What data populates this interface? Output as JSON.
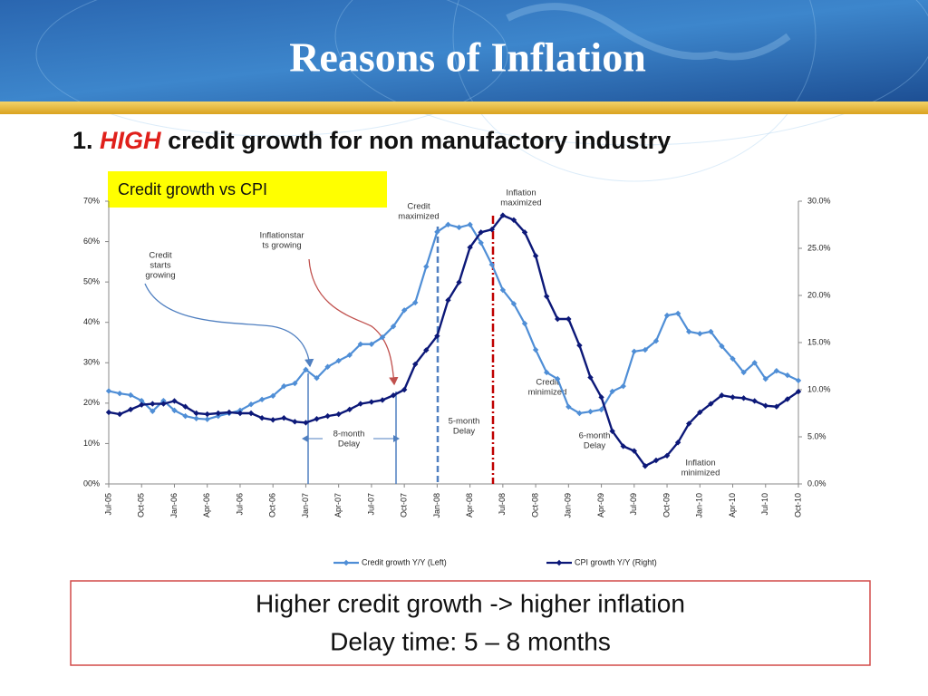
{
  "header": {
    "title": "Reasons of Inflation"
  },
  "subtitle": {
    "number": "1.",
    "highlight": "HIGH",
    "rest": "credit growth for non manufactory industry"
  },
  "chart_data": {
    "type": "line",
    "title": "Credit growth vs CPI",
    "categories": [
      "Jul-05",
      null,
      null,
      "Oct-05",
      null,
      null,
      "Jan-06",
      null,
      null,
      "Apr-06",
      null,
      null,
      "Jul-06",
      null,
      null,
      "Oct-06",
      null,
      null,
      "Jan-07",
      null,
      null,
      "Apr-07",
      null,
      null,
      "Jul-07",
      null,
      null,
      "Oct-07",
      null,
      null,
      "Jan-08",
      null,
      null,
      "Apr-08",
      null,
      null,
      "Jul-08",
      null,
      null,
      "Oct-08",
      null,
      null,
      "Jan-09",
      null,
      null,
      "Apr-09",
      null,
      null,
      "Jul-09",
      null,
      null,
      "Oct-09",
      null,
      null,
      "Jan-10",
      null,
      null,
      "Apr-10",
      null,
      null,
      "Jul-10",
      null,
      null,
      "Oct-10"
    ],
    "series": [
      {
        "name": "Credit growth Y/Y (Left)",
        "color": "#4f8ed6",
        "axis": "y",
        "values": [
          23,
          22.4,
          22,
          20.6,
          18,
          20.6,
          18.2,
          16.8,
          16.2,
          16,
          16.8,
          17.5,
          18.2,
          19.7,
          20.9,
          21.8,
          24.2,
          24.9,
          28.3,
          26.2,
          29,
          30.5,
          31.9,
          34.6,
          34.6,
          36.3,
          39,
          43,
          44.9,
          53.8,
          62.4,
          64.2,
          63.5,
          64.2,
          59.7,
          54.3,
          48,
          44.6,
          39.7,
          33.2,
          27.6,
          26,
          19.1,
          17.5,
          17.9,
          18.4,
          22.9,
          24.2,
          32.8,
          33.2,
          35.4,
          41.7,
          42.2,
          37.7,
          37.2,
          37.7,
          34.1,
          31,
          27.6,
          30,
          26,
          28,
          26.9,
          25.6
        ]
      },
      {
        "name": "CPI growth Y/Y (Right)",
        "color": "#0c1878",
        "axis": "y2",
        "values": [
          7.6,
          7.4,
          7.9,
          8.4,
          8.5,
          8.5,
          8.8,
          8.2,
          7.5,
          7.4,
          7.5,
          7.6,
          7.5,
          7.5,
          7.0,
          6.8,
          7.0,
          6.6,
          6.5,
          6.9,
          7.2,
          7.4,
          7.9,
          8.5,
          8.7,
          8.9,
          9.4,
          10,
          12.7,
          14.2,
          15.7,
          19.5,
          21.4,
          25.1,
          26.7,
          27,
          28.5,
          28,
          26.7,
          24.2,
          19.9,
          17.5,
          17.5,
          14.7,
          11.3,
          9.2,
          5.6,
          4,
          3.5,
          1.9,
          2.5,
          3,
          4.4,
          6.4,
          7.6,
          8.5,
          9.4,
          9.2,
          9.1,
          8.8,
          8.3,
          8.2,
          9,
          9.8
        ]
      }
    ],
    "marker": "diamond",
    "ylim": [
      0,
      70
    ],
    "yticks": [
      {
        "value": 0,
        "label": "00%"
      },
      {
        "value": 10,
        "label": "10%"
      },
      {
        "value": 20,
        "label": "20%"
      },
      {
        "value": 30,
        "label": "30%"
      },
      {
        "value": 40,
        "label": "40%"
      },
      {
        "value": 50,
        "label": "50%"
      },
      {
        "value": 60,
        "label": "60%"
      },
      {
        "value": 70,
        "label": "70%"
      }
    ],
    "y2lim": [
      0,
      30
    ],
    "y2ticks": [
      {
        "value": 0,
        "label": "0.0%"
      },
      {
        "value": 5,
        "label": "5.0%"
      },
      {
        "value": 10,
        "label": "10.0%"
      },
      {
        "value": 15,
        "label": "15.0%"
      },
      {
        "value": 20,
        "label": "20.0%"
      },
      {
        "value": 25,
        "label": "25.0%"
      },
      {
        "value": 30,
        "label": "30.0%"
      }
    ],
    "grid": false,
    "legend": "bottom",
    "annotations": [
      {
        "lines": [
          "Credit",
          "maximized"
        ]
      },
      {
        "lines": [
          "Inflation",
          "maximized"
        ]
      },
      {
        "lines": [
          "Credit",
          "starts",
          "growing"
        ]
      },
      {
        "lines": [
          "Inflationstar",
          "ts growing"
        ]
      },
      {
        "lines": [
          "8-month",
          "Delay"
        ]
      },
      {
        "lines": [
          "5-month",
          "Delay"
        ]
      },
      {
        "lines": [
          "Credit",
          "minimized"
        ]
      },
      {
        "lines": [
          "6-month",
          "Delay"
        ]
      },
      {
        "lines": [
          "Inflation",
          "minimized"
        ]
      }
    ]
  },
  "conclusion": {
    "lines": [
      "Higher credit growth -> higher inflation",
      "Delay time: 5 – 8 months"
    ]
  }
}
